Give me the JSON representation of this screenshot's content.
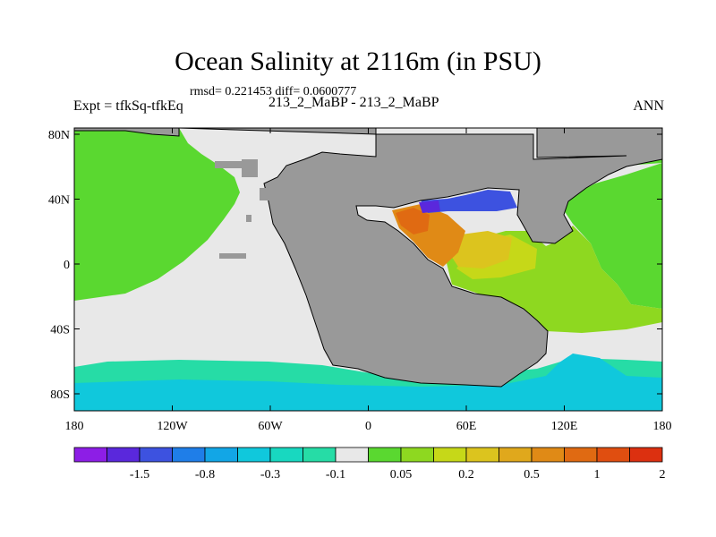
{
  "header": {
    "title": "Ocean Salinity at 2116m (in PSU)",
    "stats": "rmsd= 0.221453 diff= 0.0600777",
    "left_label": "Expt = tfkSq-tfkEq",
    "center_label": "213_2_MaBP - 213_2_MaBP",
    "right_label": "ANN"
  },
  "chart_data": {
    "type": "heatmap",
    "title": "Ocean Salinity at 2116m (in PSU)",
    "x_ticks": [
      "180",
      "120W",
      "60W",
      "0",
      "60E",
      "120E",
      "180"
    ],
    "y_ticks": [
      "80N",
      "40N",
      "0",
      "40S",
      "80S"
    ],
    "xlim": [
      -180,
      180
    ],
    "ylim": [
      -90,
      90
    ],
    "colorbar": {
      "labels": [
        "-1.5",
        "-0.8",
        "-0.3",
        "-0.1",
        "0.05",
        "0.2",
        "0.5",
        "1",
        "2"
      ],
      "colors": [
        "#8d1ee6",
        "#5a28dc",
        "#3d52e0",
        "#1f7ee8",
        "#12a6e6",
        "#10c8dc",
        "#18d8c0",
        "#26dca6",
        "#e8e8e8",
        "#5ad830",
        "#8ed820",
        "#c6d818",
        "#dcc41e",
        "#e0a81c",
        "#e08a16",
        "#e06a12",
        "#e04e10",
        "#dc3010"
      ]
    },
    "regions": {
      "land": "#999999",
      "north_pacific": "#5ad830",
      "south_pacific": "#e8e8e8",
      "southern_band_upper": "#26dca6",
      "southern_band_lower": "#10c8dc",
      "indian_ocean": "#8ed820",
      "arabian_core": "#dcc41e",
      "med_basin": "#e08a16",
      "med_east": "#3d52e0"
    }
  }
}
